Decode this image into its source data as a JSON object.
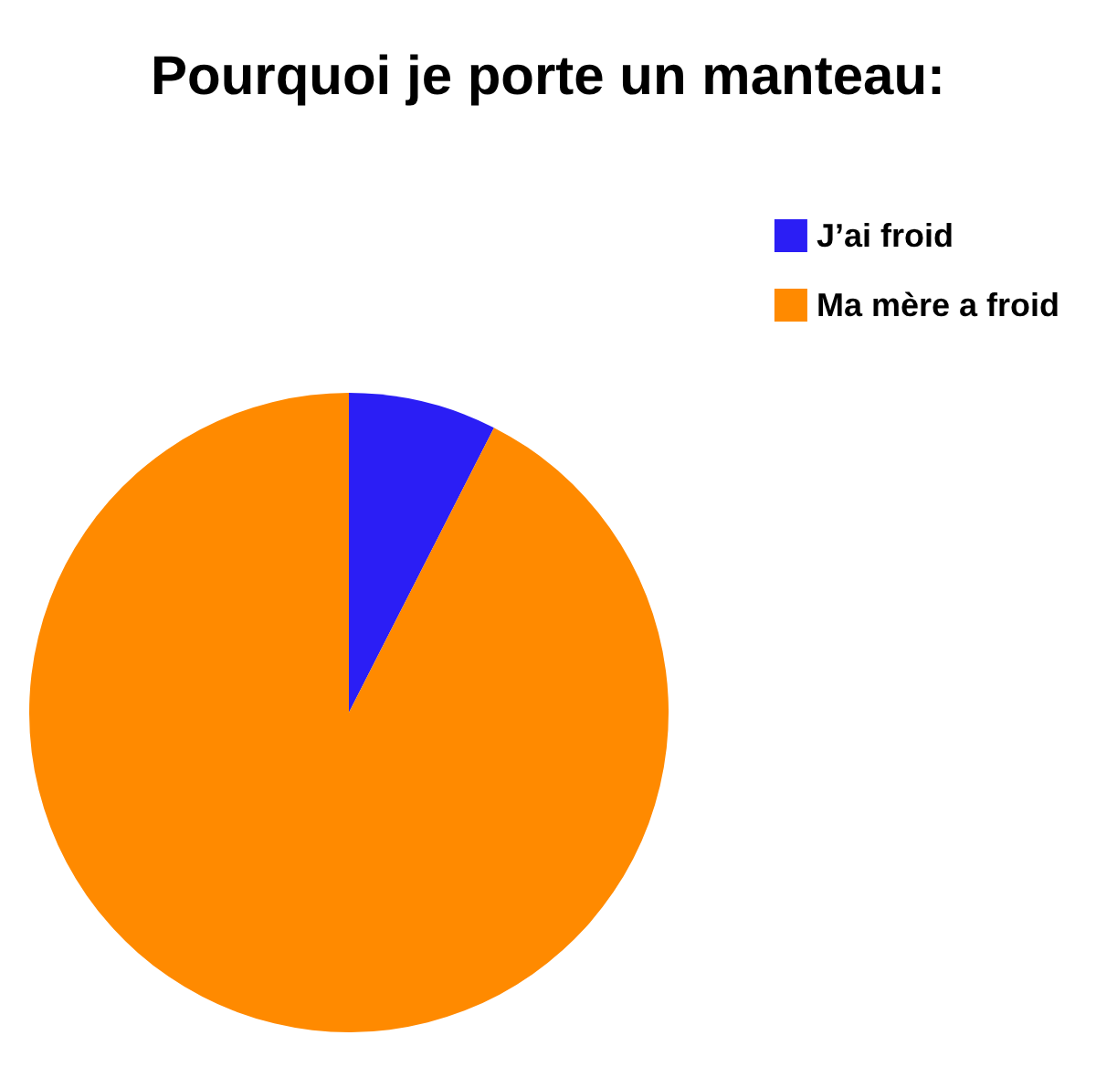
{
  "chart_data": {
    "type": "pie",
    "title": "Pourquoi je porte un manteau:",
    "categories": [
      "J’ai froid",
      "Ma mère a froid"
    ],
    "values": [
      7.5,
      92.5
    ],
    "colors": [
      "#2b1ef5",
      "#ff8a00"
    ],
    "legend": "top right"
  }
}
